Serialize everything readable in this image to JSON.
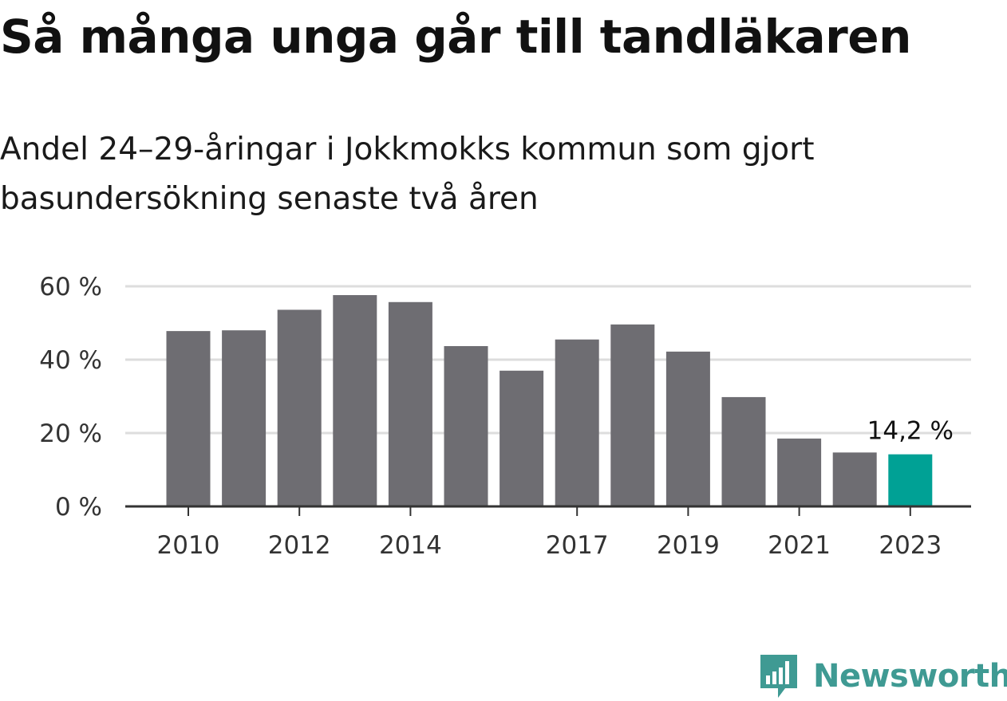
{
  "title": "Så många unga går till tandläkaren",
  "subtitle": "Andel 24–29-åringar i Jokkmokks kommun som gjort basundersökning senaste två åren",
  "brand": {
    "name": "Newsworthy",
    "color": "#3f9a93",
    "icon": "bar-chart-speech-bubble-icon"
  },
  "colors": {
    "bar": "#6e6d72",
    "highlight": "#00a195",
    "grid": "#dddddd",
    "axis": "#333333"
  },
  "chart_data": {
    "type": "bar",
    "x": [
      2010,
      2011,
      2012,
      2013,
      2014,
      2015,
      2016,
      2017,
      2018,
      2019,
      2020,
      2021,
      2022,
      2023
    ],
    "values": [
      47.8,
      48.0,
      53.6,
      57.6,
      55.7,
      43.7,
      37.0,
      45.5,
      49.6,
      42.2,
      29.8,
      18.5,
      14.7,
      14.2
    ],
    "highlight_index": 13,
    "x_tick_labels": [
      "2010",
      "2012",
      "2014",
      "2017",
      "2019",
      "2021",
      "2023"
    ],
    "y_ticks": [
      0,
      20,
      40,
      60
    ],
    "y_tick_labels": [
      "0 %",
      "20 %",
      "40 %",
      "60 %"
    ],
    "ylim": [
      0,
      60
    ],
    "data_label": "14,2 %",
    "grid": true,
    "legend": "none",
    "unit": "%"
  }
}
